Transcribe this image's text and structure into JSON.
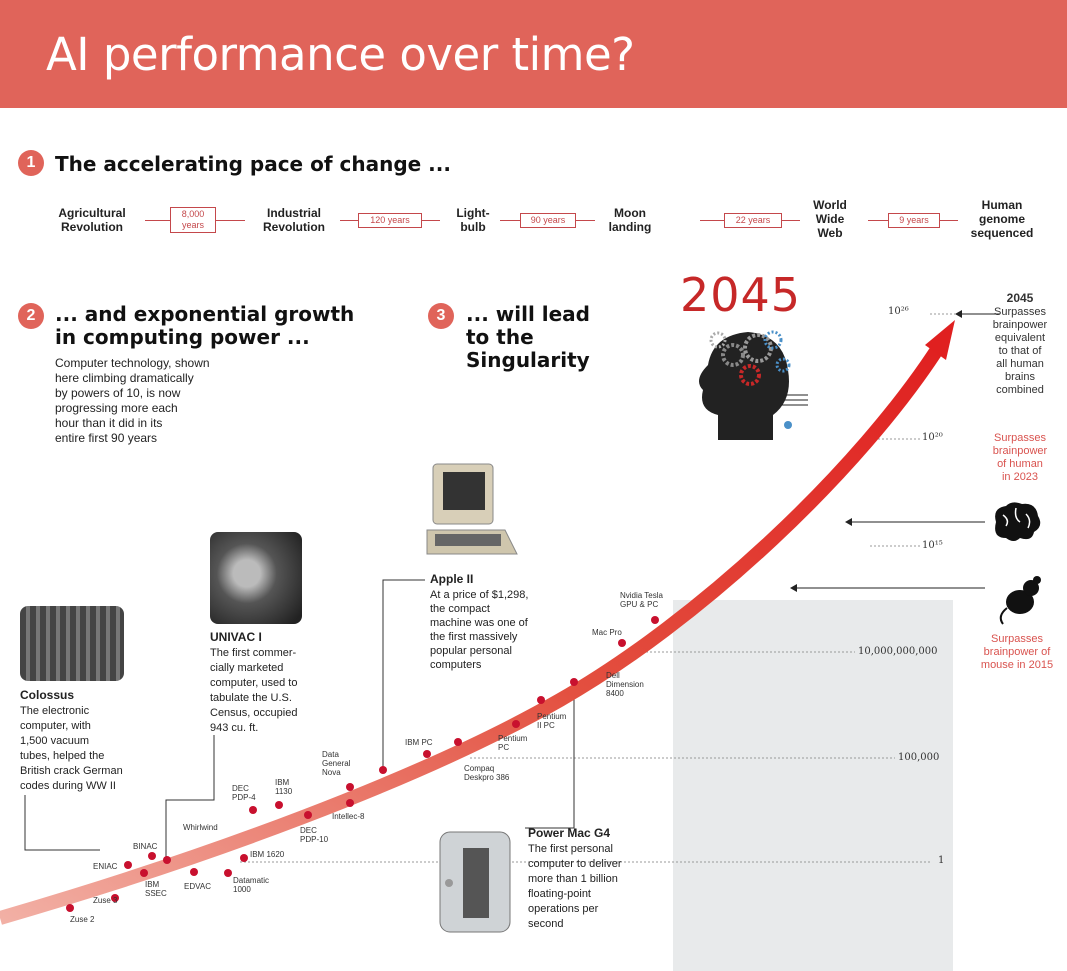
{
  "title": "AI performance over time?",
  "section1": {
    "number": "1",
    "title": "The accelerating pace of change ...",
    "events": [
      {
        "label": "Agricultural\nRevolution"
      },
      {
        "label": "Industrial\nRevolution"
      },
      {
        "label": "Light-\nbulb"
      },
      {
        "label": "Moon\nlanding"
      },
      {
        "label": "World\nWide\nWeb"
      },
      {
        "label": "Human\ngenome\nsequenced"
      }
    ],
    "intervals": [
      "8,000\nyears",
      "120 years",
      "90 years",
      "22 years",
      "9 years"
    ]
  },
  "section2": {
    "number": "2",
    "title": "... and exponential growth\nin computing power ...",
    "body": "Computer technology, shown\nhere climbing dramatically\nby powers of 10, is now\nprogressing more each\nhour than it did in its\nentire first 90 years"
  },
  "section3": {
    "number": "3",
    "title": "... will lead\nto the\nSingularity"
  },
  "year_big": "2045",
  "scale": {
    "labels": [
      {
        "text": "10²⁶"
      },
      {
        "text": "10²⁰"
      },
      {
        "text": "10¹⁵"
      },
      {
        "text": "10,000,000,000"
      },
      {
        "text": "100,000"
      },
      {
        "text": "1"
      }
    ]
  },
  "notes": {
    "n2045_title": "2045",
    "n2045_body": "Surpasses\nbrainpower\nequivalent\nto that of\nall human\nbrains\ncombined",
    "human": "Surpasses\nbrainpower\nof human\nin 2023",
    "mouse": "Surpasses\nbrainpower of\nmouse in 2015"
  },
  "computers": {
    "colossus_title": "Colossus",
    "colossus_body": "The electronic\ncomputer, with\n1,500 vacuum\ntubes, helped the\nBritish crack German\ncodes during WW II",
    "univac_title": "UNIVAC I",
    "univac_body": "The first commer-\ncially marketed\ncomputer, used to\ntabulate the U.S.\nCensus, occupied\n943 cu. ft.",
    "apple_title": "Apple II",
    "apple_body": "At a price of $1,298,\nthe compact\nmachine was one of\nthe first massively\npopular personal\ncomputers",
    "powermac_title": "Power Mac G4",
    "powermac_body": "The first personal\ncomputer to deliver\nmore than 1 billion\nfloating-point\noperations per\nsecond"
  },
  "curve_labels": [
    {
      "text": "Zuse 2"
    },
    {
      "text": "Zuse 3"
    },
    {
      "text": "ENIAC"
    },
    {
      "text": "IBM\nSSEC"
    },
    {
      "text": "BINAC"
    },
    {
      "text": "EDVAC"
    },
    {
      "text": "Whirlwind"
    },
    {
      "text": "Datamatic\n1000"
    },
    {
      "text": "IBM 1620"
    },
    {
      "text": "DEC\nPDP-4"
    },
    {
      "text": "IBM\n1130"
    },
    {
      "text": "DEC\nPDP-10"
    },
    {
      "text": "Intellec-8"
    },
    {
      "text": "Data\nGeneral\nNova"
    },
    {
      "text": "IBM PC"
    },
    {
      "text": "Compaq\nDeskpro 386"
    },
    {
      "text": "Pentium\nPC"
    },
    {
      "text": "Pentium\nII PC"
    },
    {
      "text": "Dell\nDimension\n8400"
    },
    {
      "text": "Mac Pro"
    },
    {
      "text": "Nvidia Tesla\nGPU & PC"
    }
  ],
  "colors": {
    "header": "#e0645a",
    "curve": "#e03a3a",
    "accent": "#c4484b",
    "band": "#e8eaeb"
  }
}
